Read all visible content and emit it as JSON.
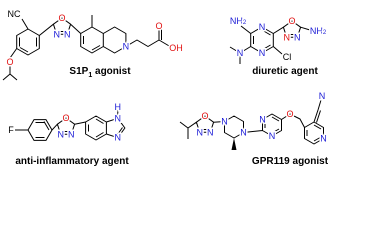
{
  "molecules": [
    {
      "label": {
        "main": "S1P",
        "sub": "1",
        "rest": " agonist"
      },
      "atoms": [
        "NC",
        "O",
        "O",
        "N",
        "N",
        "N",
        "O",
        "OH"
      ]
    },
    {
      "label": "diuretic agent",
      "atoms": [
        {
          "main": "NH",
          "sub": "2"
        },
        "N",
        "N",
        "O",
        "N",
        "N",
        {
          "main": "NH",
          "sub": "2"
        },
        "N",
        "Cl"
      ]
    },
    {
      "label": "anti-inflammatory agent",
      "atoms": [
        "F",
        "O",
        "N",
        "N",
        "N",
        "H",
        "N"
      ]
    },
    {
      "label": "GPR119 agonist",
      "atoms": [
        "O",
        "N",
        "N",
        "N",
        "N",
        "N",
        "N",
        "O",
        "N",
        "N"
      ]
    }
  ]
}
